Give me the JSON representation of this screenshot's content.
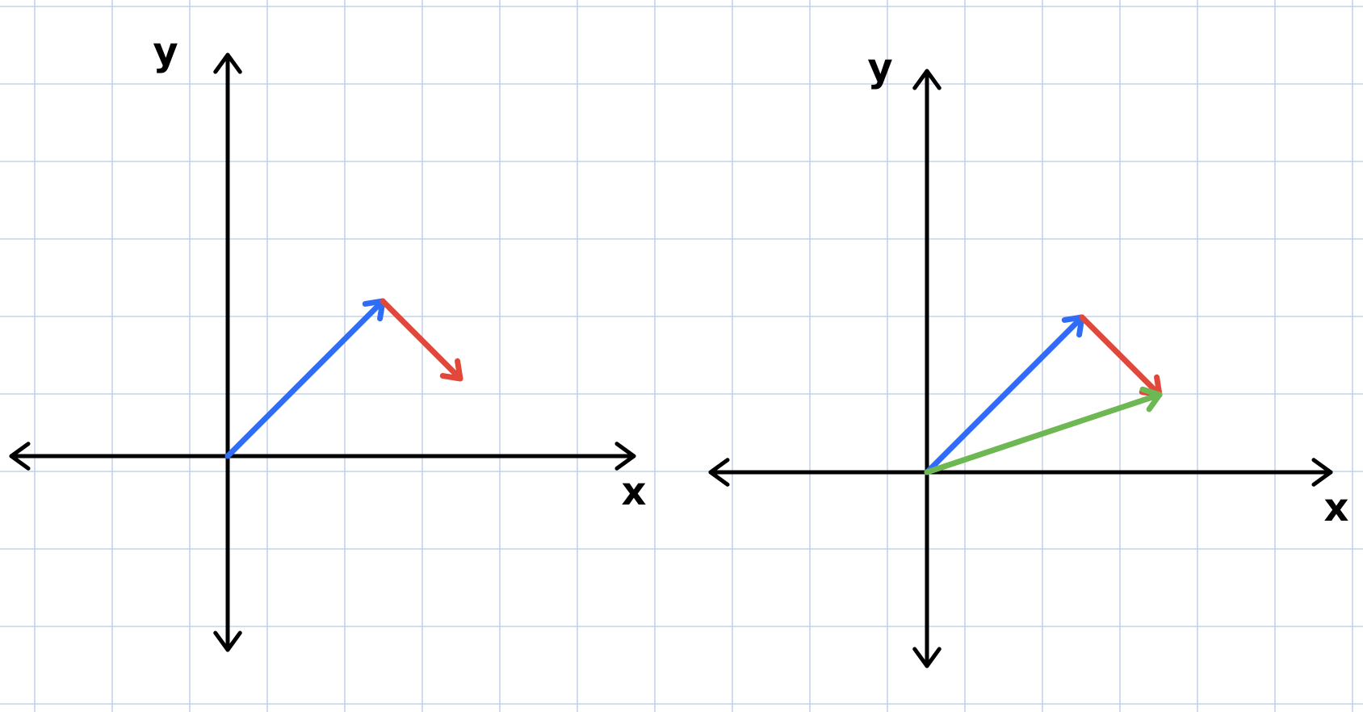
{
  "colors": {
    "background": "#ffffff",
    "grid": "#b9c9e6",
    "axes": "#000000",
    "vector_a": "#2f6df6",
    "vector_b": "#e2473a",
    "vector_sum": "#6db852"
  },
  "diagrams": [
    {
      "x_label": "x",
      "y_label": "y",
      "vectors": [
        {
          "role": "vector_a",
          "from": [
            0,
            0
          ],
          "to": [
            2,
            2
          ]
        },
        {
          "role": "vector_b",
          "from": [
            2,
            2
          ],
          "to": [
            3,
            1
          ]
        }
      ]
    },
    {
      "x_label": "x",
      "y_label": "y",
      "vectors": [
        {
          "role": "vector_a",
          "from": [
            0,
            0
          ],
          "to": [
            2,
            2
          ]
        },
        {
          "role": "vector_b",
          "from": [
            2,
            2
          ],
          "to": [
            3,
            1
          ]
        },
        {
          "role": "vector_sum",
          "from": [
            0,
            0
          ],
          "to": [
            3,
            1
          ]
        }
      ]
    }
  ]
}
